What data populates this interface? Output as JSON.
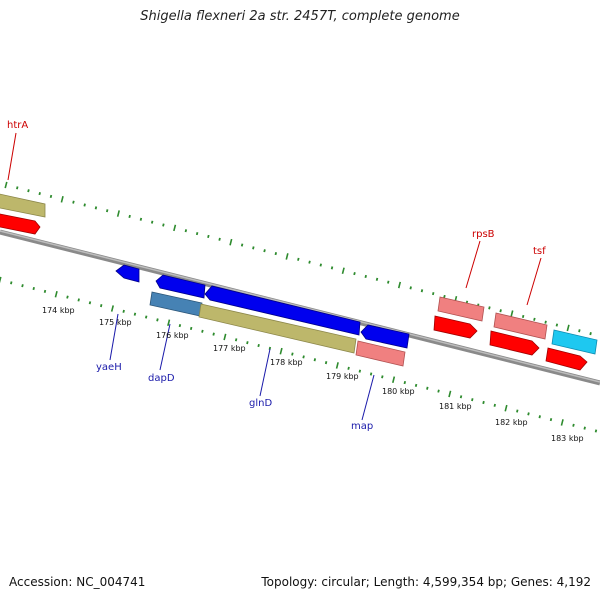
{
  "title": "Shigella flexneri 2a str. 2457T, complete genome",
  "footer": {
    "accession": "Accession: NC_004741",
    "topology": "Topology: circular; Length: 4,599,354 bp; Genes: 4,192"
  },
  "colors": {
    "backbone": "#8a8a8a",
    "tick": "#2e8b2e",
    "label_red": "#cc0000",
    "label_blue": "#1a1aaa",
    "gene_blue": "#0000ee",
    "gene_khaki": "#bdb76b",
    "gene_red": "#ff0000",
    "gene_pink": "#f08080",
    "gene_steel": "#4682b4",
    "gene_cyan": "#1ec8f0"
  },
  "ruler_labels": [
    "174 kbp",
    "175 kbp",
    "176 kbp",
    "177 kbp",
    "178 kbp",
    "179 kbp",
    "180 kbp",
    "181 kbp",
    "182 kbp",
    "183 kbp"
  ],
  "gene_labels_top": [
    "htrA",
    "rpsB",
    "tsf"
  ],
  "gene_labels_bottom": [
    "yaeH",
    "dapD",
    "glnD",
    "map"
  ]
}
